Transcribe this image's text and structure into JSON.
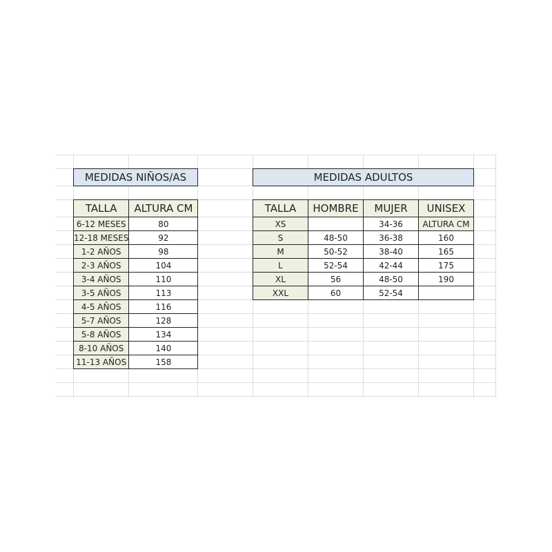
{
  "kids": {
    "title": "MEDIDAS NIÑOS/AS",
    "headers": [
      "TALLA",
      "ALTURA CM"
    ],
    "rows": [
      [
        "6-12 MESES",
        "80"
      ],
      [
        "12-18 MESES",
        "92"
      ],
      [
        "1-2 AÑOS",
        "98"
      ],
      [
        "2-3 AÑOS",
        "104"
      ],
      [
        "3-4 AÑOS",
        "110"
      ],
      [
        "3-5 AÑOS",
        "113"
      ],
      [
        "4-5 AÑOS",
        "116"
      ],
      [
        "5-7 AÑOS",
        "128"
      ],
      [
        "5-8 AÑOS",
        "134"
      ],
      [
        "8-10 AÑOS",
        "140"
      ],
      [
        "11-13 AÑOS",
        "158"
      ]
    ]
  },
  "adults": {
    "title": "MEDIDAS ADULTOS",
    "headers": [
      "TALLA",
      "HOMBRE",
      "MUJER",
      "UNISEX"
    ],
    "rows": [
      [
        "XS",
        "",
        "34-36",
        "ALTURA CM"
      ],
      [
        "S",
        "48-50",
        "36-38",
        "160"
      ],
      [
        "M",
        "50-52",
        "38-40",
        "165"
      ],
      [
        "L",
        "52-54",
        "42-44",
        "175"
      ],
      [
        "XL",
        "56",
        "48-50",
        "190"
      ],
      [
        "XXL",
        "60",
        "52-54",
        ""
      ]
    ]
  },
  "colors": {
    "title_bg": "#dce6f1",
    "size_bg": "#eef0e2"
  }
}
